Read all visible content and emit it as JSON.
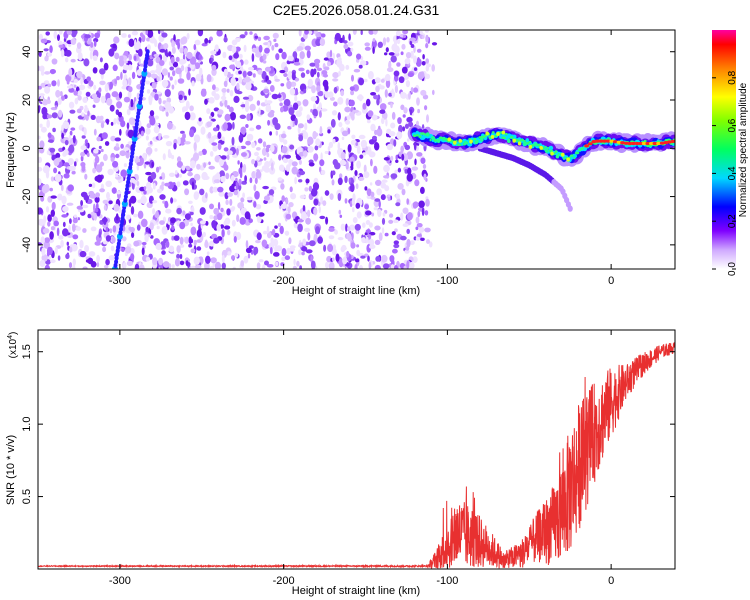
{
  "title": "C2E5.2026.058.01.24.G31",
  "chart_data": [
    {
      "type": "heatmap",
      "xlabel": "Height of straight line (km)",
      "ylabel": "Frequency (Hz)",
      "xlim": [
        -350,
        39
      ],
      "ylim": [
        -50,
        49
      ],
      "xticks": [
        -300,
        -200,
        -100,
        0
      ],
      "yticks": [
        -40,
        -20,
        0,
        20,
        40
      ],
      "colorbar": {
        "label": "Normalized spectral amplitude",
        "range": [
          0,
          1
        ],
        "ticks": [
          0.0,
          0.2,
          0.4,
          0.6,
          0.8
        ]
      },
      "features": {
        "noise_region_x": [
          -350,
          -112
        ],
        "steep_line": {
          "x": [
            -303,
            -283
          ],
          "freq": [
            -50,
            40
          ]
        },
        "main_trace": {
          "x": [
            -120,
            -110,
            -100,
            -90,
            -80,
            -70,
            -60,
            -50,
            -40,
            -30,
            -25,
            -20,
            -15,
            -10,
            0,
            10,
            20,
            30,
            39
          ],
          "freq": [
            6,
            4,
            3,
            2,
            4,
            6,
            4,
            2,
            0,
            -3,
            -4,
            -2,
            1,
            3,
            3,
            2,
            2,
            2,
            3
          ]
        },
        "lower_branch": {
          "x": [
            -80,
            -70,
            -60,
            -50,
            -40,
            -30,
            -25
          ],
          "freq": [
            0,
            -2,
            -4,
            -7,
            -11,
            -17,
            -25
          ]
        }
      }
    },
    {
      "type": "line",
      "xlabel": "Height of straight line (km)",
      "ylabel": "SNR (10 * v/v)",
      "yscale_note": "(x10",
      "yscale_exp": "4",
      "yscale_close": ")",
      "xlim": [
        -350,
        39
      ],
      "ylim": [
        0,
        1.65
      ],
      "xticks": [
        -300,
        -200,
        -100,
        0
      ],
      "yticks": [
        0.5,
        1.0,
        1.5
      ],
      "ytick_labels": [
        "0.5",
        "1.0",
        "1.5"
      ],
      "color": "#e83030",
      "envelope": {
        "x": [
          -350,
          -112,
          -105,
          -95,
          -85,
          -75,
          -65,
          -55,
          -45,
          -35,
          -30,
          -25,
          -20,
          -15,
          -10,
          -5,
          0,
          10,
          20,
          30,
          39
        ],
        "mid": [
          0.02,
          0.02,
          0.08,
          0.25,
          0.22,
          0.15,
          0.06,
          0.1,
          0.22,
          0.3,
          0.4,
          0.55,
          0.7,
          0.82,
          0.95,
          1.05,
          1.15,
          1.3,
          1.42,
          1.5,
          1.53
        ],
        "amp": [
          0.003,
          0.005,
          0.1,
          0.25,
          0.22,
          0.14,
          0.06,
          0.1,
          0.18,
          0.28,
          0.35,
          0.45,
          0.45,
          0.4,
          0.35,
          0.3,
          0.25,
          0.12,
          0.08,
          0.05,
          0.04
        ]
      }
    }
  ]
}
